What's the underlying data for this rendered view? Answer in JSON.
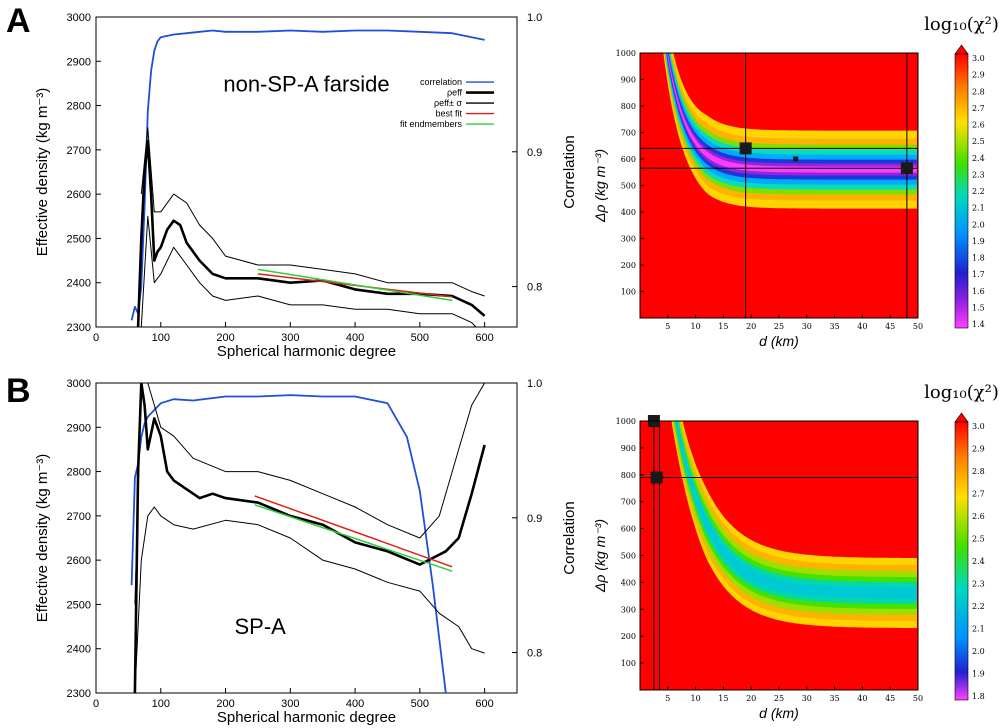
{
  "chart_data": [
    {
      "type": "line",
      "panel": "A",
      "annotation": "non-SP-A farside",
      "xlabel": "Spherical harmonic degree",
      "ylabel": "Effective density (kg m⁻³)",
      "ylabel_right": "Correlation",
      "xlim": [
        0,
        650
      ],
      "ylim": [
        2300,
        3000
      ],
      "ylim_right": [
        0.77,
        1.0
      ],
      "xticks": [
        "0",
        "100",
        "200",
        "300",
        "400",
        "500",
        "600"
      ],
      "yticks": [
        "2300",
        "2400",
        "2500",
        "2600",
        "2700",
        "2800",
        "2900",
        "3000"
      ],
      "yticks_right": [
        "0.8",
        "0.9",
        "1.0"
      ],
      "legend": {
        "position": "right",
        "entries": [
          {
            "label": "correlation",
            "color": "#1f4fd8"
          },
          {
            "label": "ρeff",
            "color": "#000000"
          },
          {
            "label": "ρeff± σ",
            "color": "#000000"
          },
          {
            "label": "best fit",
            "color": "#e0201a"
          },
          {
            "label": "fit endmembers",
            "color": "#2fce35"
          }
        ]
      },
      "series": [
        {
          "name": "correlation",
          "axis": "right",
          "color": "#1f4fd8",
          "x": [
            55,
            60,
            65,
            70,
            75,
            80,
            85,
            90,
            95,
            100,
            110,
            120,
            140,
            160,
            180,
            200,
            250,
            300,
            350,
            400,
            450,
            500,
            550,
            580,
            600
          ],
          "values": [
            0.775,
            0.785,
            0.78,
            0.8,
            0.86,
            0.93,
            0.96,
            0.975,
            0.982,
            0.985,
            0.986,
            0.987,
            0.988,
            0.989,
            0.99,
            0.989,
            0.989,
            0.99,
            0.989,
            0.99,
            0.99,
            0.989,
            0.988,
            0.985,
            0.983
          ]
        },
        {
          "name": "ρeff",
          "axis": "left",
          "color": "#000000",
          "x": [
            65,
            70,
            75,
            80,
            85,
            90,
            95,
            100,
            110,
            120,
            130,
            140,
            160,
            180,
            200,
            250,
            300,
            350,
            400,
            450,
            500,
            550,
            580,
            600
          ],
          "values": [
            2300,
            2500,
            2650,
            2720,
            2600,
            2450,
            2470,
            2480,
            2520,
            2540,
            2530,
            2490,
            2450,
            2420,
            2410,
            2410,
            2400,
            2405,
            2385,
            2375,
            2375,
            2370,
            2350,
            2325
          ]
        },
        {
          "name": "ρeff+σ",
          "axis": "left",
          "color": "#000000",
          "x": [
            70,
            80,
            90,
            100,
            120,
            140,
            160,
            180,
            200,
            250,
            300,
            350,
            400,
            450,
            500,
            550,
            580,
            600
          ],
          "values": [
            2600,
            2750,
            2560,
            2560,
            2600,
            2580,
            2530,
            2500,
            2460,
            2440,
            2440,
            2430,
            2420,
            2400,
            2400,
            2400,
            2380,
            2370
          ]
        },
        {
          "name": "ρeff-σ",
          "axis": "left",
          "color": "#000000",
          "x": [
            60,
            70,
            80,
            90,
            100,
            120,
            140,
            160,
            180,
            200,
            250,
            300,
            350,
            400,
            450,
            500,
            550,
            580,
            600
          ],
          "values": [
            2300,
            2300,
            2550,
            2400,
            2420,
            2480,
            2440,
            2400,
            2370,
            2360,
            2370,
            2350,
            2350,
            2340,
            2340,
            2330,
            2330,
            2310,
            2280
          ]
        },
        {
          "name": "best fit",
          "axis": "left",
          "color": "#e0201a",
          "x": [
            250,
            550
          ],
          "values": [
            2420,
            2368
          ]
        },
        {
          "name": "fit endmembers",
          "axis": "left",
          "color": "#2fce35",
          "x": [
            250,
            550
          ],
          "values": [
            2430,
            2360
          ]
        }
      ]
    },
    {
      "type": "heatmap",
      "panel": "A",
      "title": "log₁₀(χ²)",
      "xlabel": "d (km)",
      "ylabel": "Δρ (kg m⁻³)",
      "xlim": [
        0,
        50
      ],
      "ylim": [
        0,
        1000
      ],
      "xticks": [
        "5",
        "10",
        "15",
        "20",
        "25",
        "30",
        "35",
        "40",
        "45",
        "50"
      ],
      "yticks": [
        "100",
        "200",
        "300",
        "400",
        "500",
        "600",
        "700",
        "800",
        "900",
        "1000"
      ],
      "colorbar_range": [
        1.4,
        3.0
      ],
      "colorbar_ticks": [
        "3.0",
        "2.9",
        "2.8",
        "2.7",
        "2.6",
        "2.5",
        "2.4",
        "2.3",
        "2.2",
        "2.1",
        "2.0",
        "1.9",
        "1.8",
        "1.7",
        "1.6",
        "1.5",
        "1.4"
      ],
      "valley": {
        "asymptote": 560,
        "amplitude": 1800,
        "decay_km": 3.5
      },
      "markers": [
        {
          "x": 19,
          "y": 640
        },
        {
          "x": 28,
          "y": 600
        },
        {
          "x": 48,
          "y": 565
        }
      ],
      "crosshairs": {
        "x": [
          19,
          48
        ],
        "y": [
          640,
          565
        ]
      }
    },
    {
      "type": "line",
      "panel": "B",
      "annotation": "SP-A",
      "xlabel": "Spherical harmonic degree",
      "ylabel": "Effective density (kg m⁻³)",
      "ylabel_right": "Correlation",
      "xlim": [
        0,
        650
      ],
      "ylim": [
        2300,
        3000
      ],
      "ylim_right": [
        0.77,
        1.0
      ],
      "xticks": [
        "0",
        "100",
        "200",
        "300",
        "400",
        "500",
        "600"
      ],
      "yticks": [
        "2300",
        "2400",
        "2500",
        "2600",
        "2700",
        "2800",
        "2900",
        "3000"
      ],
      "yticks_right": [
        "0.8",
        "0.9",
        "1.0"
      ],
      "series": [
        {
          "name": "correlation",
          "axis": "right",
          "color": "#1f4fd8",
          "x": [
            55,
            60,
            65,
            70,
            75,
            80,
            90,
            100,
            120,
            150,
            200,
            250,
            300,
            350,
            400,
            450,
            480,
            500,
            520,
            540
          ],
          "values": [
            0.85,
            0.93,
            0.94,
            0.96,
            0.97,
            0.975,
            0.98,
            0.985,
            0.988,
            0.987,
            0.99,
            0.99,
            0.991,
            0.99,
            0.99,
            0.985,
            0.96,
            0.92,
            0.85,
            0.77
          ]
        },
        {
          "name": "ρeff",
          "axis": "left",
          "color": "#000000",
          "x": [
            60,
            65,
            70,
            75,
            80,
            90,
            100,
            110,
            120,
            140,
            160,
            180,
            200,
            250,
            300,
            350,
            400,
            450,
            500,
            540,
            560,
            580,
            600
          ],
          "values": [
            2300,
            2800,
            3000,
            2950,
            2850,
            2920,
            2880,
            2800,
            2780,
            2760,
            2740,
            2750,
            2740,
            2730,
            2700,
            2680,
            2640,
            2620,
            2590,
            2620,
            2650,
            2750,
            2860
          ]
        },
        {
          "name": "ρeff+σ",
          "axis": "left",
          "color": "#000000",
          "x": [
            60,
            70,
            80,
            90,
            100,
            120,
            150,
            200,
            250,
            300,
            350,
            400,
            450,
            500,
            530,
            560,
            580,
            600
          ],
          "values": [
            2500,
            3000,
            3000,
            2950,
            2900,
            2880,
            2830,
            2800,
            2800,
            2780,
            2750,
            2720,
            2680,
            2650,
            2700,
            2850,
            2950,
            3000
          ]
        },
        {
          "name": "ρeff-σ",
          "axis": "left",
          "color": "#000000",
          "x": [
            60,
            70,
            80,
            90,
            100,
            120,
            150,
            200,
            250,
            300,
            350,
            400,
            450,
            500,
            530,
            560,
            580,
            600
          ],
          "values": [
            2300,
            2600,
            2700,
            2720,
            2700,
            2680,
            2670,
            2690,
            2680,
            2650,
            2600,
            2580,
            2550,
            2530,
            2480,
            2450,
            2400,
            2390
          ]
        },
        {
          "name": "best fit",
          "axis": "left",
          "color": "#e0201a",
          "x": [
            245,
            550
          ],
          "values": [
            2745,
            2585
          ]
        },
        {
          "name": "fit endmembers",
          "axis": "left",
          "color": "#2fce35",
          "x": [
            245,
            550
          ],
          "values": [
            2725,
            2575
          ]
        }
      ]
    },
    {
      "type": "heatmap",
      "panel": "B",
      "title": "log₁₀(χ²)",
      "xlabel": "d (km)",
      "ylabel": "Δρ (kg m⁻³)",
      "xlim": [
        0,
        50
      ],
      "ylim": [
        0,
        1000
      ],
      "xticks": [
        "5",
        "10",
        "15",
        "20",
        "25",
        "30",
        "35",
        "40",
        "45",
        "50"
      ],
      "yticks": [
        "100",
        "200",
        "300",
        "400",
        "500",
        "600",
        "700",
        "800",
        "900",
        "1000"
      ],
      "colorbar_range": [
        1.8,
        3.0
      ],
      "colorbar_ticks": [
        "3.0",
        "2.9",
        "2.8",
        "2.7",
        "2.6",
        "2.5",
        "2.4",
        "2.3",
        "2.2",
        "2.1",
        "2.0",
        "1.9",
        "1.8"
      ],
      "valley": {
        "asymptote": 360,
        "amplitude": 1900,
        "decay_km": 6.0
      },
      "markers": [
        {
          "x": 3,
          "y": 790
        },
        {
          "x": 2.5,
          "y": 1000
        }
      ],
      "crosshairs": {
        "x": [
          2.5,
          3.5
        ],
        "y": [
          790
        ]
      }
    }
  ]
}
